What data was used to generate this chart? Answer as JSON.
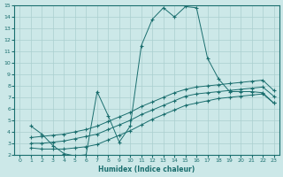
{
  "bg_color": "#cce8e8",
  "line_color": "#1a6e6e",
  "grid_color": "#aacfcf",
  "xlabel": "Humidex (Indice chaleur)",
  "xlim": [
    -0.5,
    23.5
  ],
  "ylim": [
    2,
    15
  ],
  "xticks": [
    0,
    1,
    2,
    3,
    4,
    5,
    6,
    7,
    8,
    9,
    10,
    11,
    12,
    13,
    14,
    15,
    16,
    17,
    18,
    19,
    20,
    21,
    22,
    23
  ],
  "yticks": [
    2,
    3,
    4,
    5,
    6,
    7,
    8,
    9,
    10,
    11,
    12,
    13,
    14,
    15
  ],
  "curve1_x": [
    1,
    2,
    3,
    4,
    5,
    6,
    7,
    8,
    9,
    10,
    11,
    12,
    13,
    14,
    15,
    16,
    17,
    18,
    19,
    20,
    21,
    22,
    23
  ],
  "curve1_y": [
    4.5,
    3.8,
    2.8,
    2.1,
    1.9,
    2.0,
    7.5,
    5.4,
    3.1,
    4.5,
    11.5,
    13.8,
    14.8,
    14.0,
    14.9,
    14.8,
    10.4,
    8.6,
    7.5,
    7.5,
    7.5,
    7.4,
    6.5
  ],
  "curve2_x": [
    1,
    2,
    3,
    4,
    5,
    6,
    7,
    8,
    9,
    10,
    11,
    12,
    13,
    14,
    15,
    16,
    17,
    18,
    19,
    20,
    21,
    22,
    23
  ],
  "curve2_y": [
    2.6,
    2.5,
    2.5,
    2.5,
    2.6,
    2.7,
    2.9,
    3.3,
    3.7,
    4.1,
    4.6,
    5.1,
    5.5,
    5.9,
    6.3,
    6.5,
    6.7,
    6.9,
    7.0,
    7.1,
    7.2,
    7.3,
    6.5
  ],
  "curve3_x": [
    1,
    2,
    3,
    4,
    5,
    6,
    7,
    8,
    9,
    10,
    11,
    12,
    13,
    14,
    15,
    16,
    17,
    18,
    19,
    20,
    21,
    22,
    23
  ],
  "curve3_y": [
    3.0,
    3.0,
    3.1,
    3.2,
    3.4,
    3.6,
    3.8,
    4.2,
    4.6,
    5.0,
    5.5,
    5.9,
    6.3,
    6.7,
    7.1,
    7.3,
    7.4,
    7.5,
    7.6,
    7.7,
    7.8,
    7.9,
    7.1
  ],
  "curve4_x": [
    1,
    2,
    3,
    4,
    5,
    6,
    7,
    8,
    9,
    10,
    11,
    12,
    13,
    14,
    15,
    16,
    17,
    18,
    19,
    20,
    21,
    22,
    23
  ],
  "curve4_y": [
    3.5,
    3.6,
    3.7,
    3.8,
    4.0,
    4.2,
    4.5,
    4.9,
    5.3,
    5.7,
    6.2,
    6.6,
    7.0,
    7.4,
    7.7,
    7.9,
    8.0,
    8.1,
    8.2,
    8.3,
    8.4,
    8.5,
    7.6
  ]
}
